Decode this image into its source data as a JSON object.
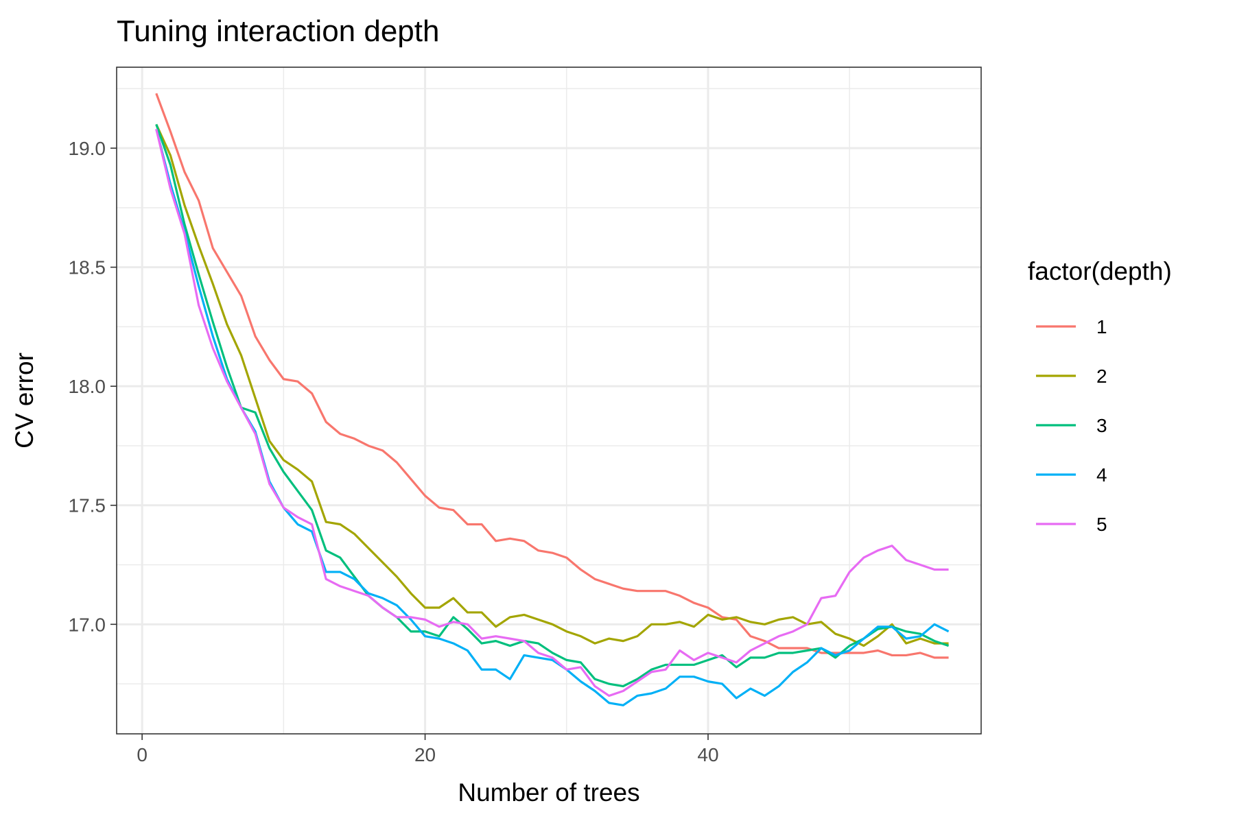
{
  "chart_data": {
    "type": "line",
    "title": "Tuning interaction depth",
    "xlabel": "Number of trees",
    "ylabel": "CV error",
    "xlim": [
      -1.8,
      59.3
    ],
    "ylim": [
      16.54,
      19.34
    ],
    "x_ticks": [
      0,
      20,
      40
    ],
    "y_ticks": [
      17.0,
      17.5,
      18.0,
      18.5,
      19.0
    ],
    "x_tick_labels": [
      "0",
      "20",
      "40"
    ],
    "y_tick_labels": [
      "17.0",
      "17.5",
      "18.0",
      "18.5",
      "19.0"
    ],
    "grid": true,
    "legend": {
      "title": "factor(depth)",
      "position": "right"
    },
    "x": [
      1,
      2,
      3,
      4,
      5,
      6,
      7,
      8,
      9,
      10,
      11,
      12,
      13,
      14,
      15,
      16,
      17,
      18,
      19,
      20,
      21,
      22,
      23,
      24,
      25,
      26,
      27,
      28,
      29,
      30,
      31,
      32,
      33,
      34,
      35,
      36,
      37,
      38,
      39,
      40,
      41,
      42,
      43,
      44,
      45,
      46,
      47,
      48,
      49,
      50,
      51,
      52,
      53,
      54,
      55,
      56,
      57
    ],
    "series": [
      {
        "name": "1",
        "color": "#F8766D",
        "values": [
          19.23,
          19.07,
          18.9,
          18.78,
          18.58,
          18.48,
          18.38,
          18.21,
          18.11,
          18.03,
          18.02,
          17.97,
          17.85,
          17.8,
          17.78,
          17.75,
          17.73,
          17.68,
          17.61,
          17.54,
          17.49,
          17.48,
          17.42,
          17.42,
          17.35,
          17.36,
          17.35,
          17.31,
          17.3,
          17.28,
          17.23,
          17.19,
          17.17,
          17.15,
          17.14,
          17.14,
          17.14,
          17.12,
          17.09,
          17.07,
          17.03,
          17.02,
          16.95,
          16.93,
          16.9,
          16.9,
          16.9,
          16.88,
          16.88,
          16.88,
          16.88,
          16.89,
          16.87,
          16.87,
          16.88,
          16.86,
          16.86
        ]
      },
      {
        "name": "2",
        "color": "#A3A500",
        "values": [
          19.1,
          18.97,
          18.76,
          18.59,
          18.43,
          18.26,
          18.13,
          17.95,
          17.77,
          17.69,
          17.65,
          17.6,
          17.43,
          17.42,
          17.38,
          17.32,
          17.26,
          17.2,
          17.13,
          17.07,
          17.07,
          17.11,
          17.05,
          17.05,
          16.99,
          17.03,
          17.04,
          17.02,
          17.0,
          16.97,
          16.95,
          16.92,
          16.94,
          16.93,
          16.95,
          17.0,
          17.0,
          17.01,
          16.99,
          17.04,
          17.02,
          17.03,
          17.01,
          17.0,
          17.02,
          17.03,
          17.0,
          17.01,
          16.96,
          16.94,
          16.91,
          16.95,
          17.0,
          16.92,
          16.94,
          16.92,
          16.92
        ]
      },
      {
        "name": "3",
        "color": "#00BF7D",
        "values": [
          19.1,
          18.93,
          18.68,
          18.47,
          18.27,
          18.08,
          17.91,
          17.89,
          17.74,
          17.64,
          17.56,
          17.48,
          17.31,
          17.28,
          17.2,
          17.12,
          17.07,
          17.03,
          16.97,
          16.97,
          16.95,
          17.03,
          16.98,
          16.92,
          16.93,
          16.91,
          16.93,
          16.92,
          16.88,
          16.85,
          16.84,
          16.77,
          16.75,
          16.74,
          16.77,
          16.81,
          16.83,
          16.83,
          16.83,
          16.85,
          16.87,
          16.82,
          16.86,
          16.86,
          16.88,
          16.88,
          16.89,
          16.9,
          16.86,
          16.91,
          16.94,
          16.98,
          16.99,
          16.97,
          16.96,
          16.93,
          16.91
        ]
      },
      {
        "name": "4",
        "color": "#00B0F6",
        "values": [
          19.08,
          18.85,
          18.65,
          18.42,
          18.21,
          18.03,
          17.91,
          17.81,
          17.6,
          17.49,
          17.42,
          17.39,
          17.22,
          17.22,
          17.19,
          17.13,
          17.11,
          17.08,
          17.02,
          16.95,
          16.94,
          16.92,
          16.89,
          16.81,
          16.81,
          16.77,
          16.87,
          16.86,
          16.85,
          16.81,
          16.76,
          16.72,
          16.67,
          16.66,
          16.7,
          16.71,
          16.73,
          16.78,
          16.78,
          16.76,
          16.75,
          16.69,
          16.73,
          16.7,
          16.74,
          16.8,
          16.84,
          16.9,
          16.87,
          16.89,
          16.94,
          16.99,
          16.99,
          16.94,
          16.95,
          17.0,
          16.97
        ]
      },
      {
        "name": "5",
        "color": "#E76BF3",
        "values": [
          19.08,
          18.83,
          18.64,
          18.34,
          18.16,
          18.02,
          17.91,
          17.8,
          17.59,
          17.49,
          17.45,
          17.42,
          17.19,
          17.16,
          17.14,
          17.12,
          17.07,
          17.03,
          17.03,
          17.02,
          16.99,
          17.01,
          17.0,
          16.94,
          16.95,
          16.94,
          16.93,
          16.88,
          16.86,
          16.81,
          16.82,
          16.74,
          16.7,
          16.72,
          16.76,
          16.8,
          16.81,
          16.89,
          16.85,
          16.88,
          16.86,
          16.84,
          16.89,
          16.92,
          16.95,
          16.97,
          17.0,
          17.11,
          17.12,
          17.22,
          17.28,
          17.31,
          17.33,
          17.27,
          17.25,
          17.23,
          17.23
        ]
      }
    ]
  }
}
